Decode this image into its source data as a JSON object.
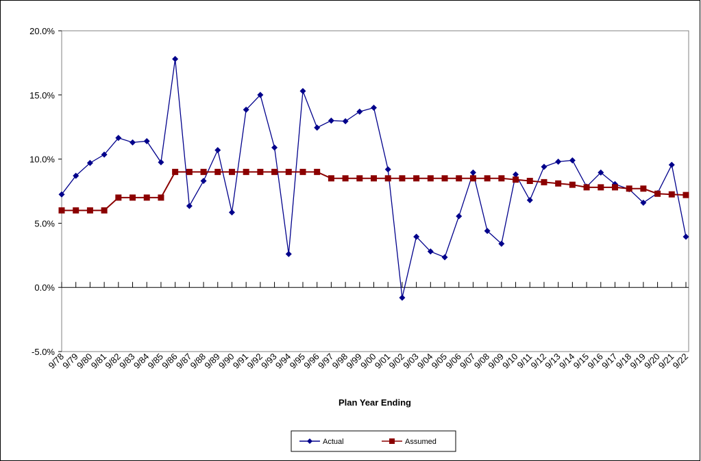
{
  "chart_data": {
    "type": "line",
    "x_label": "Plan Year Ending",
    "categories": [
      "9/78",
      "9/79",
      "9/80",
      "9/81",
      "9/82",
      "9/83",
      "9/84",
      "9/85",
      "9/86",
      "9/87",
      "9/88",
      "9/89",
      "9/90",
      "9/91",
      "9/92",
      "9/93",
      "9/94",
      "9/95",
      "9/96",
      "9/97",
      "9/98",
      "9/99",
      "9/00",
      "9/01",
      "9/02",
      "9/03",
      "9/04",
      "9/05",
      "9/06",
      "9/07",
      "9/08",
      "9/09",
      "9/10",
      "9/11",
      "9/12",
      "9/13",
      "9/14",
      "9/15",
      "9/16",
      "9/17",
      "9/18",
      "9/19",
      "9/20",
      "9/21",
      "9/22"
    ],
    "series": [
      {
        "name": "Actual",
        "color": "#00008b",
        "marker": "diamond",
        "values": [
          7.25,
          8.7,
          9.7,
          10.35,
          11.65,
          11.3,
          11.4,
          9.75,
          17.8,
          6.35,
          8.3,
          10.7,
          5.85,
          13.85,
          15.0,
          10.9,
          2.6,
          15.3,
          12.45,
          13.0,
          12.95,
          13.7,
          14.0,
          9.2,
          -0.8,
          3.95,
          2.8,
          2.35,
          5.55,
          8.95,
          4.4,
          3.4,
          8.8,
          6.8,
          9.4,
          9.8,
          9.9,
          7.85,
          8.95,
          8.05,
          7.65,
          6.6,
          7.35,
          9.55,
          3.95
        ]
      },
      {
        "name": "Assumed",
        "color": "#8b0000",
        "marker": "square",
        "values": [
          6.0,
          6.0,
          6.0,
          6.0,
          7.0,
          7.0,
          7.0,
          7.0,
          9.0,
          9.0,
          9.0,
          9.0,
          9.0,
          9.0,
          9.0,
          9.0,
          9.0,
          9.0,
          9.0,
          8.5,
          8.5,
          8.5,
          8.5,
          8.5,
          8.5,
          8.5,
          8.5,
          8.5,
          8.5,
          8.5,
          8.5,
          8.5,
          8.4,
          8.3,
          8.2,
          8.1,
          8.0,
          7.8,
          7.8,
          7.8,
          7.7,
          7.7,
          7.3,
          7.25,
          7.2
        ]
      }
    ],
    "ylim": [
      -5,
      20
    ],
    "yticks": [
      {
        "value": -5,
        "label": "-5.0%"
      },
      {
        "value": 0,
        "label": "0.0%"
      },
      {
        "value": 5,
        "label": "5.0%"
      },
      {
        "value": 10,
        "label": "10.0%"
      },
      {
        "value": 15,
        "label": "15.0%"
      },
      {
        "value": 20,
        "label": "20.0%"
      }
    ],
    "legend": "bottom"
  }
}
